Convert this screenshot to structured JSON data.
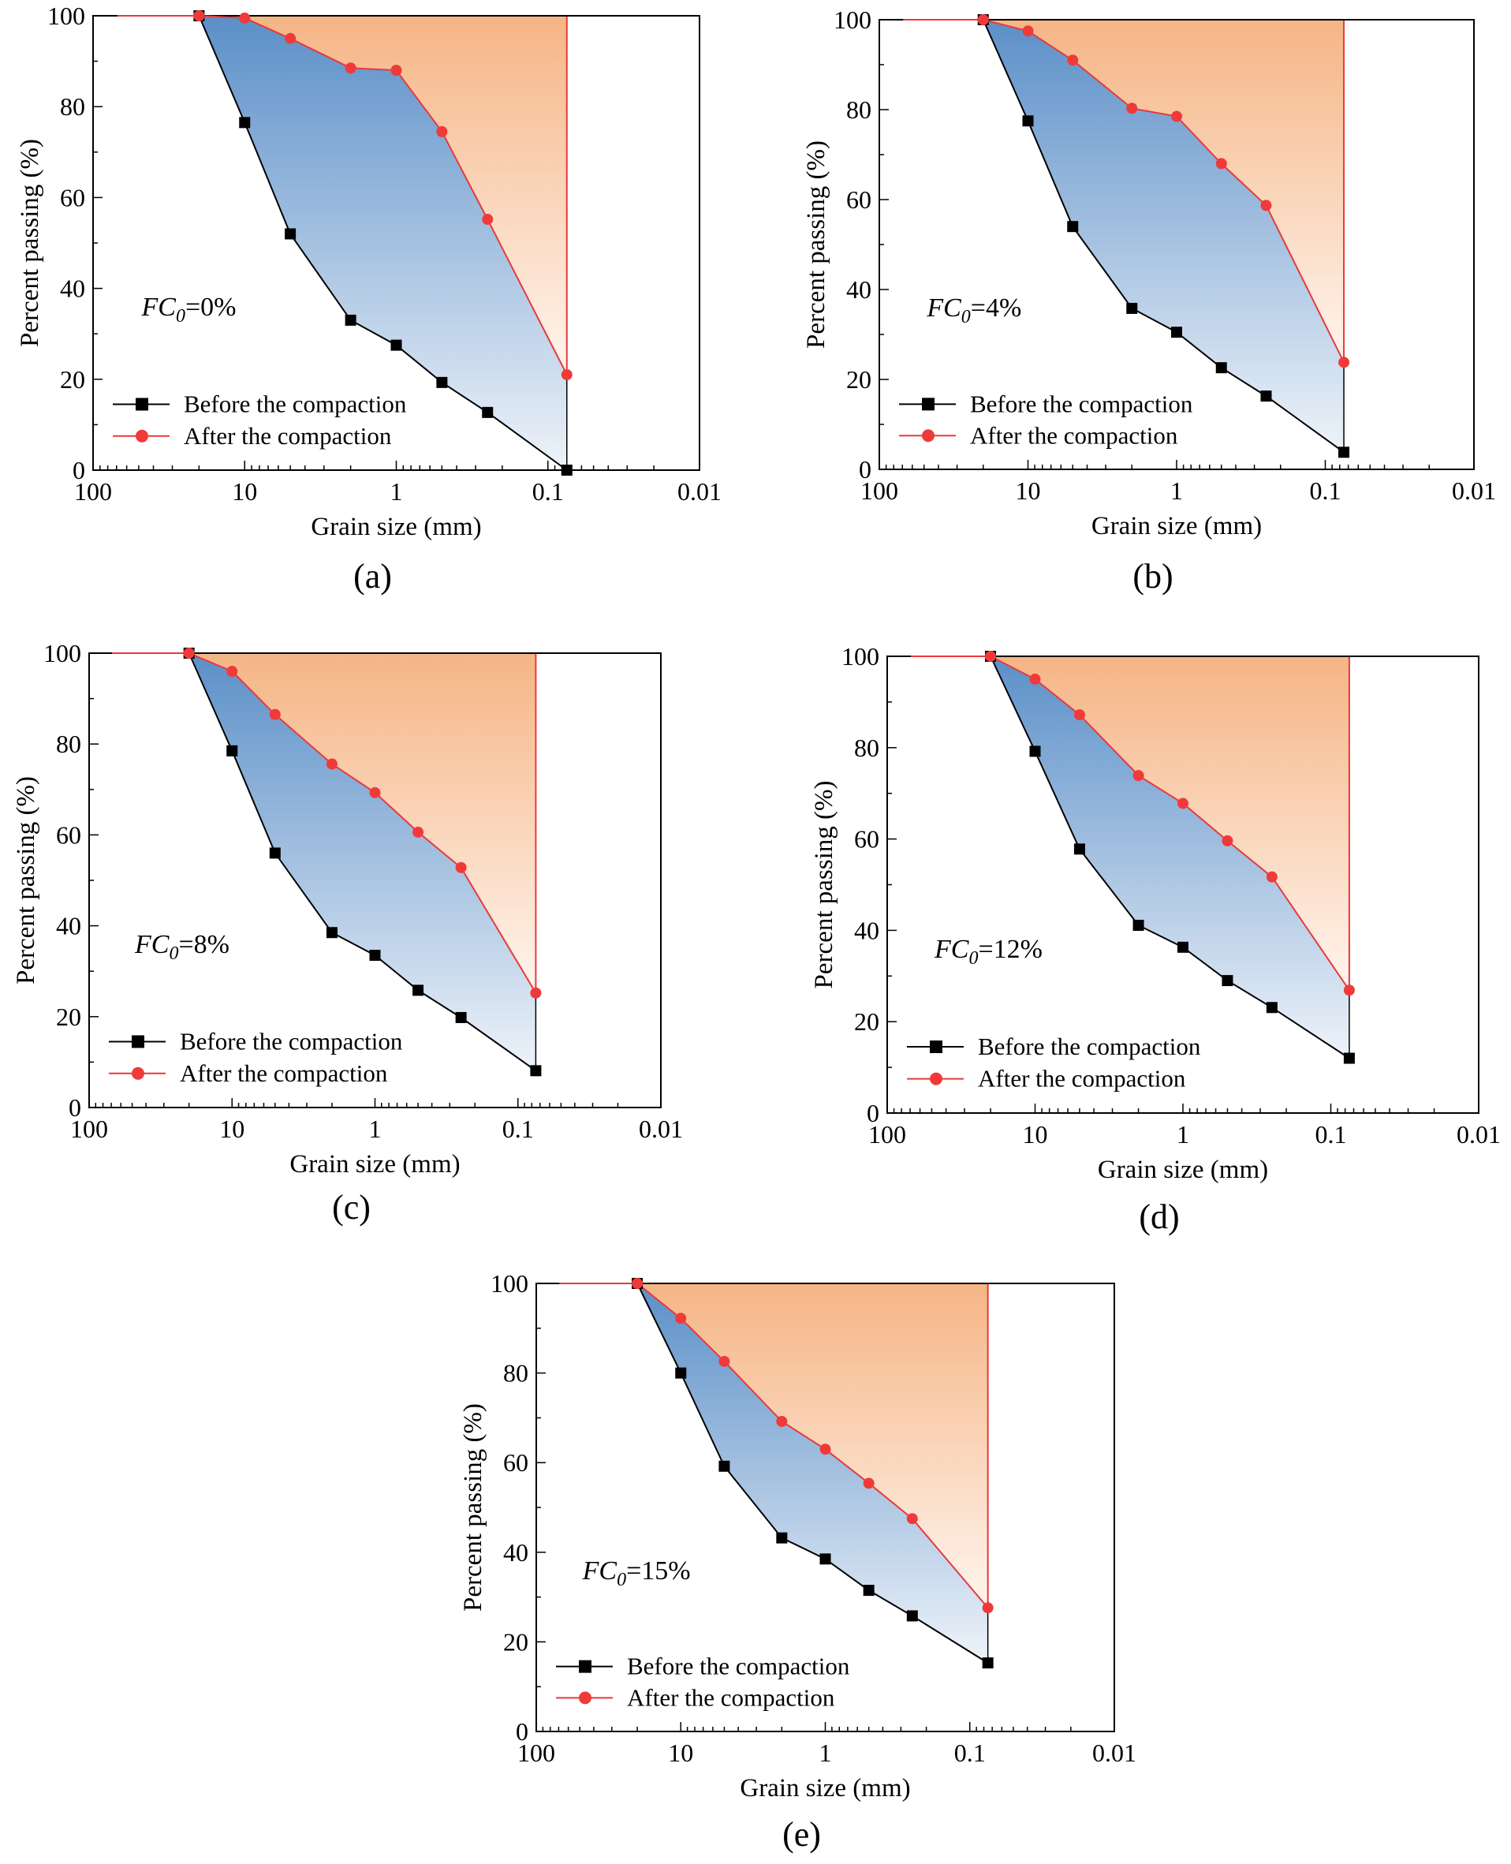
{
  "figure": {
    "type": "grain-size distribution curves",
    "panel_count": 5
  },
  "colors": {
    "before_series": "#000000",
    "after_series": "#e8393c",
    "after_marker": "#f03a3a",
    "fill_between_top": "#5b8fc8",
    "fill_between_bottom": "#eef3f9",
    "fill_above_top": "#f5b585",
    "fill_above_bottom": "#fff5ee",
    "axis": "#000000",
    "background": "#ffffff"
  },
  "chart_data": [
    {
      "type": "line",
      "id": "a",
      "caption": "(a)",
      "annotation_var": "FC",
      "annotation_sub": "0",
      "annotation_value": "=0%",
      "xlabel": "Grain size (mm)",
      "ylabel": "Percent passing (%)",
      "x_scale": "log",
      "x_reversed": true,
      "xlim": [
        100,
        0.01
      ],
      "ylim": [
        0,
        100
      ],
      "x_ticks": [
        100,
        10,
        1,
        0.1,
        0.01
      ],
      "x_tick_labels": [
        "100",
        "10",
        "1",
        "0.1",
        "0.01"
      ],
      "y_ticks": [
        0,
        20,
        40,
        60,
        80,
        100
      ],
      "y_tick_labels": [
        "0",
        "20",
        "40",
        "60",
        "80",
        "100"
      ],
      "legend_position": "bottom-left",
      "series": [
        {
          "name": "Before the compaction",
          "marker": "square",
          "x": [
            20,
            10,
            5,
            2,
            1,
            0.5,
            0.25,
            0.075
          ],
          "y": [
            100,
            76.5,
            52,
            33,
            27.5,
            19.3,
            12.7,
            0
          ]
        },
        {
          "name": "After the compaction",
          "marker": "circle",
          "x": [
            20,
            10,
            5,
            2,
            1,
            0.5,
            0.25,
            0.075
          ],
          "y": [
            100,
            99.5,
            95,
            88.5,
            88,
            74.5,
            55.2,
            21
          ]
        }
      ]
    },
    {
      "type": "line",
      "id": "b",
      "caption": "(b)",
      "annotation_var": "FC",
      "annotation_sub": "0",
      "annotation_value": "=4%",
      "xlabel": "Grain size (mm)",
      "ylabel": "Percent passing (%)",
      "x_scale": "log",
      "x_reversed": true,
      "xlim": [
        100,
        0.01
      ],
      "ylim": [
        0,
        100
      ],
      "x_ticks": [
        100,
        10,
        1,
        0.1,
        0.01
      ],
      "x_tick_labels": [
        "100",
        "10",
        "1",
        "0.1",
        "0.01"
      ],
      "y_ticks": [
        0,
        20,
        40,
        60,
        80,
        100
      ],
      "y_tick_labels": [
        "0",
        "20",
        "40",
        "60",
        "80",
        "100"
      ],
      "legend_position": "bottom-left",
      "series": [
        {
          "name": "Before the compaction",
          "marker": "square",
          "x": [
            20,
            10,
            5,
            2,
            1,
            0.5,
            0.25,
            0.075
          ],
          "y": [
            100,
            77.5,
            54,
            35.8,
            30.5,
            22.6,
            16.3,
            3.8
          ]
        },
        {
          "name": "After the compaction",
          "marker": "circle",
          "x": [
            20,
            10,
            5,
            2,
            1,
            0.5,
            0.25,
            0.075
          ],
          "y": [
            100,
            97.5,
            91,
            80.3,
            78.5,
            68,
            58.7,
            23.8
          ]
        }
      ]
    },
    {
      "type": "line",
      "id": "c",
      "caption": "(c)",
      "annotation_var": "FC",
      "annotation_sub": "0",
      "annotation_value": "=8%",
      "xlabel": "Grain size (mm)",
      "ylabel": "Percent passing (%)",
      "x_scale": "log",
      "x_reversed": true,
      "xlim": [
        100,
        0.01
      ],
      "ylim": [
        0,
        100
      ],
      "x_ticks": [
        100,
        10,
        1,
        0.1,
        0.01
      ],
      "x_tick_labels": [
        "100",
        "10",
        "1",
        "0.1",
        "0.01"
      ],
      "y_ticks": [
        0,
        20,
        40,
        60,
        80,
        100
      ],
      "y_tick_labels": [
        "0",
        "20",
        "40",
        "60",
        "80",
        "100"
      ],
      "legend_position": "bottom-left",
      "series": [
        {
          "name": "Before the compaction",
          "marker": "square",
          "x": [
            20,
            10,
            5,
            2,
            1,
            0.5,
            0.25,
            0.075
          ],
          "y": [
            100,
            78.5,
            56,
            38.5,
            33.5,
            25.8,
            19.8,
            8.1
          ]
        },
        {
          "name": "After the compaction",
          "marker": "circle",
          "x": [
            20,
            10,
            5,
            2,
            1,
            0.5,
            0.25,
            0.075
          ],
          "y": [
            100,
            96,
            86.5,
            75.6,
            69.3,
            60.6,
            52.8,
            25.2
          ]
        }
      ]
    },
    {
      "type": "line",
      "id": "d",
      "caption": "(d)",
      "annotation_var": "FC",
      "annotation_sub": "0",
      "annotation_value": "=12%",
      "xlabel": "Grain size (mm)",
      "ylabel": "Percent passing (%)",
      "x_scale": "log",
      "x_reversed": true,
      "xlim": [
        100,
        0.01
      ],
      "ylim": [
        0,
        100
      ],
      "x_ticks": [
        100,
        10,
        1,
        0.1,
        0.01
      ],
      "x_tick_labels": [
        "100",
        "10",
        "1",
        "0.1",
        "0.01"
      ],
      "y_ticks": [
        0,
        20,
        40,
        60,
        80,
        100
      ],
      "y_tick_labels": [
        "0",
        "20",
        "40",
        "60",
        "80",
        "100"
      ],
      "legend_position": "bottom-left",
      "series": [
        {
          "name": "Before the compaction",
          "marker": "square",
          "x": [
            20,
            10,
            5,
            2,
            1,
            0.5,
            0.25,
            0.075
          ],
          "y": [
            100,
            79.2,
            57.8,
            41.1,
            36.3,
            29,
            23.1,
            12
          ]
        },
        {
          "name": "After the compaction",
          "marker": "circle",
          "x": [
            20,
            10,
            5,
            2,
            1,
            0.5,
            0.25,
            0.075
          ],
          "y": [
            100,
            95,
            87.2,
            73.9,
            67.8,
            59.6,
            51.7,
            26.9
          ]
        }
      ]
    },
    {
      "type": "line",
      "id": "e",
      "caption": "(e)",
      "annotation_var": "FC",
      "annotation_sub": "0",
      "annotation_value": "=15%",
      "xlabel": "Grain size (mm)",
      "ylabel": "Percent passing (%)",
      "x_scale": "log",
      "x_reversed": true,
      "xlim": [
        100,
        0.01
      ],
      "ylim": [
        0,
        100
      ],
      "x_ticks": [
        100,
        10,
        1,
        0.1,
        0.01
      ],
      "x_tick_labels": [
        "100",
        "10",
        "1",
        "0.1",
        "0.01"
      ],
      "y_ticks": [
        0,
        20,
        40,
        60,
        80,
        100
      ],
      "y_tick_labels": [
        "0",
        "20",
        "40",
        "60",
        "80",
        "100"
      ],
      "legend_position": "bottom-left",
      "series": [
        {
          "name": "Before the compaction",
          "marker": "square",
          "x": [
            20,
            10,
            5,
            2,
            1,
            0.5,
            0.25,
            0.075
          ],
          "y": [
            100,
            80,
            59.2,
            43.2,
            38.5,
            31.5,
            25.8,
            15.3
          ]
        },
        {
          "name": "After the compaction",
          "marker": "circle",
          "x": [
            20,
            10,
            5,
            2,
            1,
            0.5,
            0.25,
            0.075
          ],
          "y": [
            100,
            92.2,
            82.6,
            69.2,
            63,
            55.4,
            47.5,
            27.6
          ]
        }
      ]
    }
  ]
}
